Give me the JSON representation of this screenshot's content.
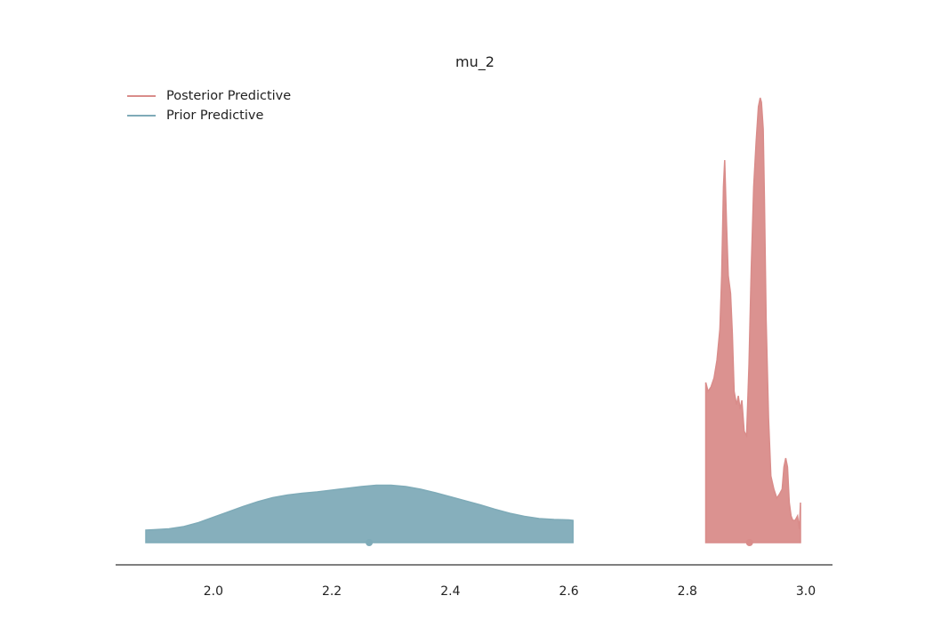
{
  "chart_data": {
    "type": "area",
    "title": "mu_2",
    "xlabel": "",
    "ylabel": "",
    "xlim": [
      1.835,
      3.045
    ],
    "ylim": [
      0,
      1
    ],
    "grid": false,
    "legend_position": "top-left",
    "xticks": [
      "2.0",
      "2.2",
      "2.4",
      "2.6",
      "2.8",
      "3.0"
    ],
    "series": [
      {
        "name": "Posterior Predictive",
        "color": "#d98c8a",
        "point_estimate": 2.905,
        "x": [
          2.831,
          2.835,
          2.84,
          2.845,
          2.85,
          2.855,
          2.858,
          2.861,
          2.863,
          2.866,
          2.869,
          2.873,
          2.876,
          2.879,
          2.883,
          2.886,
          2.889,
          2.892,
          2.896,
          2.9,
          2.904,
          2.908,
          2.912,
          2.916,
          2.92,
          2.923,
          2.925,
          2.928,
          2.93,
          2.933,
          2.937,
          2.941,
          2.946,
          2.951,
          2.956,
          2.96,
          2.963,
          2.966,
          2.969,
          2.972,
          2.975,
          2.978,
          2.982,
          2.986,
          2.989,
          2.991
        ],
        "y": [
          0.36,
          0.34,
          0.35,
          0.37,
          0.41,
          0.48,
          0.6,
          0.8,
          0.86,
          0.72,
          0.6,
          0.56,
          0.47,
          0.34,
          0.31,
          0.33,
          0.3,
          0.32,
          0.25,
          0.24,
          0.4,
          0.62,
          0.8,
          0.9,
          0.98,
          1.0,
          0.99,
          0.93,
          0.78,
          0.5,
          0.28,
          0.15,
          0.12,
          0.1,
          0.11,
          0.12,
          0.17,
          0.19,
          0.17,
          0.09,
          0.06,
          0.05,
          0.05,
          0.06,
          0.03,
          0.09
        ]
      },
      {
        "name": "Prior Predictive",
        "color": "#7fabb8",
        "point_estimate": 2.263,
        "x": [
          1.886,
          1.9,
          1.925,
          1.95,
          1.975,
          2.0,
          2.025,
          2.05,
          2.075,
          2.1,
          2.125,
          2.15,
          2.175,
          2.2,
          2.225,
          2.25,
          2.275,
          2.3,
          2.325,
          2.35,
          2.375,
          2.4,
          2.425,
          2.45,
          2.475,
          2.5,
          2.525,
          2.55,
          2.575,
          2.6,
          2.607
        ],
        "y": [
          0.028,
          0.029,
          0.031,
          0.036,
          0.045,
          0.057,
          0.069,
          0.081,
          0.092,
          0.101,
          0.107,
          0.111,
          0.114,
          0.118,
          0.122,
          0.126,
          0.129,
          0.129,
          0.126,
          0.12,
          0.112,
          0.103,
          0.094,
          0.085,
          0.075,
          0.066,
          0.059,
          0.054,
          0.052,
          0.051,
          0.05
        ]
      }
    ]
  }
}
